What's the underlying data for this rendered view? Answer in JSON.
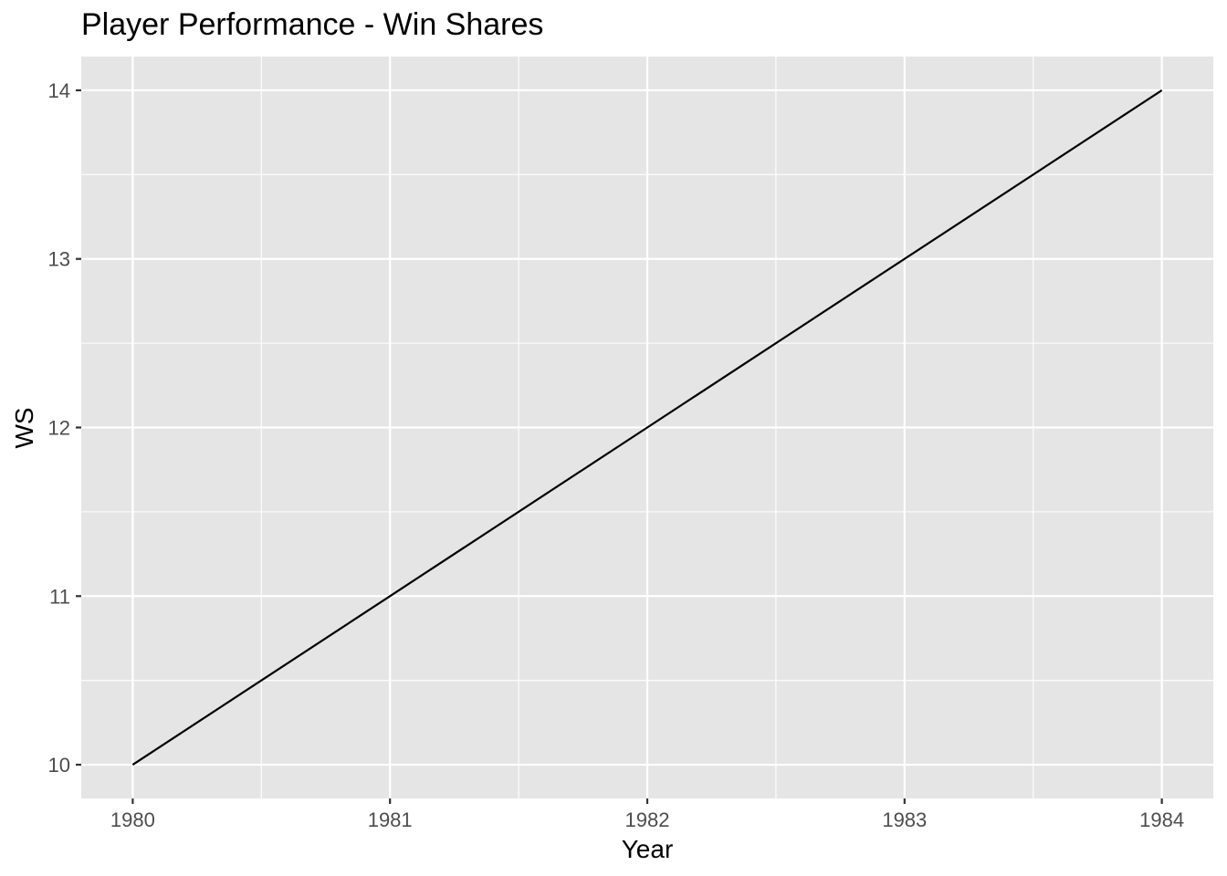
{
  "chart_data": {
    "type": "line",
    "title": "Player Performance - Win Shares",
    "xlabel": "Year",
    "ylabel": "WS",
    "x": [
      1980,
      1981,
      1982,
      1983,
      1984
    ],
    "series": [
      {
        "name": "WS",
        "values": [
          10,
          11,
          12,
          13,
          14
        ]
      }
    ],
    "x_ticks": [
      1980,
      1981,
      1982,
      1983,
      1984
    ],
    "y_ticks": [
      10,
      11,
      12,
      13,
      14
    ],
    "xlim": [
      1979.8,
      1984.2
    ],
    "ylim": [
      9.8,
      14.2
    ],
    "grid": true,
    "legend": "none",
    "colors": {
      "panel": "#E5E5E5",
      "grid": "#FFFFFF",
      "line": "#000000",
      "tick": "#333333"
    }
  }
}
